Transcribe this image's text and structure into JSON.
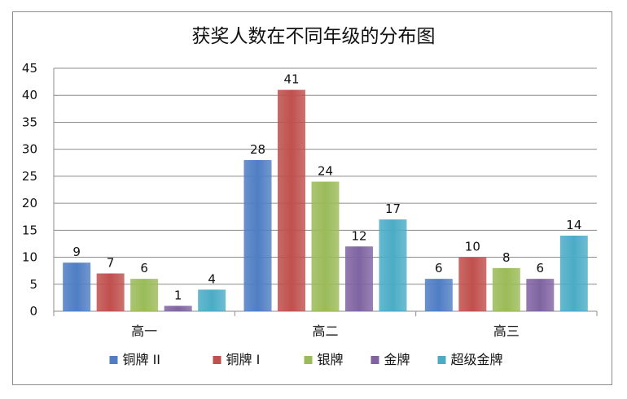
{
  "chart_data": {
    "type": "bar",
    "title": "获奖人数在不同年级的分布图",
    "categories": [
      "高一",
      "高二",
      "高三"
    ],
    "ylim": [
      0,
      45
    ],
    "yticks": [
      0,
      5,
      10,
      15,
      20,
      25,
      30,
      35,
      40,
      45
    ],
    "grid": true,
    "legend_position": "bottom",
    "series": [
      {
        "name": "铜牌 II",
        "color": "#4f7ec4",
        "values": [
          9,
          28,
          6
        ]
      },
      {
        "name": "铜牌 I",
        "color": "#c0504d",
        "values": [
          7,
          41,
          10
        ]
      },
      {
        "name": "银牌",
        "color": "#9bbb59",
        "values": [
          6,
          24,
          8
        ]
      },
      {
        "name": "金牌",
        "color": "#8064a2",
        "values": [
          1,
          12,
          6
        ]
      },
      {
        "name": "超级金牌",
        "color": "#4bacc6",
        "values": [
          4,
          17,
          14
        ]
      }
    ]
  }
}
